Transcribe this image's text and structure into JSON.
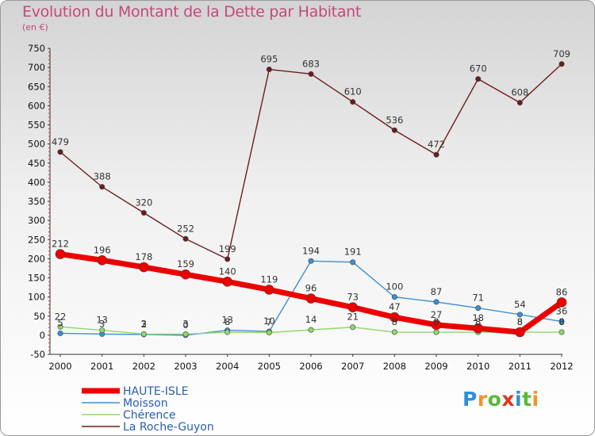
{
  "header": {
    "title": "Evolution du Montant de la Dette par Habitant",
    "subtitle": "(en €)"
  },
  "brand": {
    "letters": [
      "P",
      "r",
      "o",
      "x",
      "i",
      "t",
      "i"
    ],
    "colors": [
      "#2b8fd8",
      "#f19325",
      "#5aba3a",
      "#e4331f",
      "#2b8fd8",
      "#5aba3a",
      "#f19325"
    ]
  },
  "chart_data": {
    "type": "line",
    "title": "Evolution du Montant de la Dette par Habitant",
    "subtitle": "(en €)",
    "x": [
      "2000",
      "2001",
      "2002",
      "2003",
      "2004",
      "2005",
      "2006",
      "2007",
      "2008",
      "2009",
      "2010",
      "2011",
      "2012"
    ],
    "ylim": [
      -50,
      750
    ],
    "yticks": [
      -50,
      0,
      50,
      100,
      150,
      200,
      250,
      300,
      350,
      400,
      450,
      500,
      550,
      600,
      650,
      700,
      750
    ],
    "grid": false,
    "legend_position": "bottom-left",
    "series": [
      {
        "name": "HAUTE-ISLE",
        "color": "#ee0000",
        "values": [
          212,
          196,
          178,
          159,
          140,
          119,
          96,
          73,
          47,
          27,
          18,
          8,
          86
        ]
      },
      {
        "name": "Moisson",
        "color": "#3e8fd1",
        "values": [
          5,
          3,
          2,
          0,
          13,
          10,
          194,
          191,
          100,
          87,
          71,
          54,
          36
        ]
      },
      {
        "name": "Chérence",
        "color": "#8fd86e",
        "values": [
          22,
          13,
          3,
          3,
          8,
          7,
          14,
          21,
          8,
          8,
          8,
          8,
          8
        ]
      },
      {
        "name": "La Roche-Guyon",
        "color": "#6b1d1d",
        "values": [
          479,
          388,
          320,
          252,
          199,
          695,
          683,
          610,
          536,
          472,
          670,
          608,
          709
        ]
      }
    ]
  }
}
